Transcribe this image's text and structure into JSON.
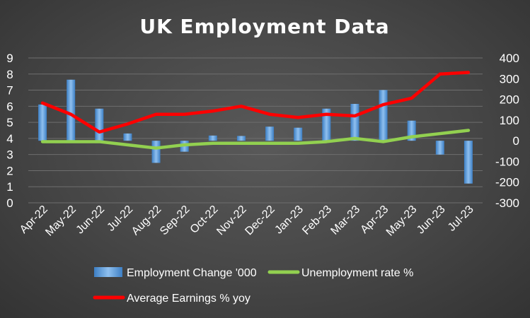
{
  "chart_data": {
    "type": "bar",
    "title": "UK Employment Data",
    "categories": [
      "Apr-22",
      "May-22",
      "Jun-22",
      "Jul-22",
      "Aug-22",
      "Sep-22",
      "Oct-22",
      "Nov-22",
      "Dec-22",
      "Jan-23",
      "Feb-23",
      "Mar-23",
      "Apr-23",
      "May-23",
      "Jun-23",
      "Jul-23"
    ],
    "series": [
      {
        "name": "Employment Change '000",
        "type": "bar",
        "axis": "secondary",
        "color": "#5b9bd5",
        "values": [
          175,
          295,
          155,
          35,
          -107,
          -53,
          25,
          23,
          68,
          63,
          155,
          178,
          245,
          97,
          -67,
          -207
        ]
      },
      {
        "name": "Unemployment rate %",
        "type": "line",
        "axis": "primary",
        "color": "#92d050",
        "values": [
          3.8,
          3.8,
          3.8,
          3.6,
          3.4,
          3.6,
          3.7,
          3.7,
          3.7,
          3.7,
          3.8,
          4.0,
          3.8,
          4.1,
          4.3,
          4.5
        ]
      },
      {
        "name": "Average Earnings % yoy",
        "type": "line",
        "axis": "primary",
        "color": "#ff0000",
        "values": [
          6.2,
          5.5,
          4.4,
          4.9,
          5.5,
          5.5,
          5.7,
          6.0,
          5.5,
          5.3,
          5.5,
          5.4,
          6.1,
          6.5,
          8.0,
          8.1
        ]
      }
    ],
    "ylim": [
      0,
      9
    ],
    "yticks": [
      "0",
      "1",
      "2",
      "3",
      "4",
      "5",
      "6",
      "7",
      "8",
      "9"
    ],
    "y2lim": [
      -300,
      400
    ],
    "y2ticks": [
      "-300",
      "-200",
      "-100",
      "0",
      "100",
      "200",
      "300",
      "400"
    ],
    "grid": true,
    "legend": "bottom"
  }
}
